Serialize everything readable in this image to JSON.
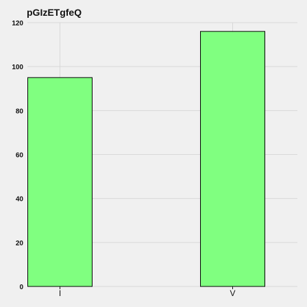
{
  "chart_data": {
    "type": "bar",
    "title": "pGIzETgfeQ",
    "categories": [
      "I",
      "V"
    ],
    "values": [
      95,
      116
    ],
    "ylim": [
      0,
      120
    ],
    "yticks": [
      0,
      20,
      40,
      60,
      80,
      100,
      120
    ],
    "grid": true,
    "bar_color": "#80ff80",
    "edge_color": "#000000",
    "background_color": "#f0f0f0",
    "grid_color": "#d8d8d8"
  }
}
